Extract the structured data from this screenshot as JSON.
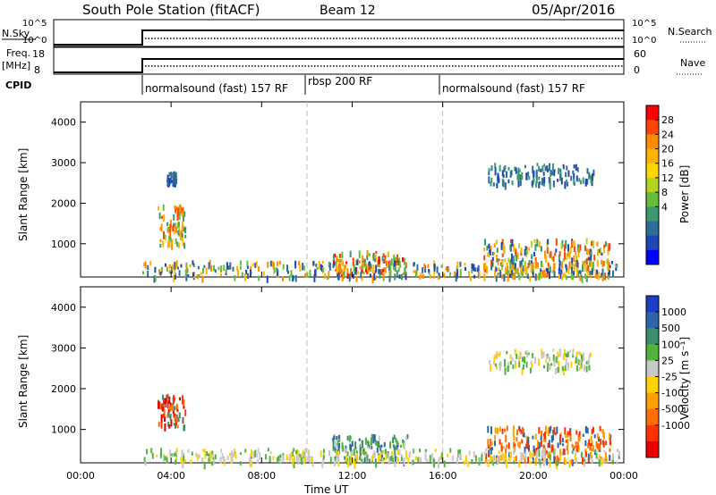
{
  "header": {
    "station": "South Pole Station (fitACF)",
    "beam": "Beam 12",
    "date": "05/Apr/2016"
  },
  "strip_panels": {
    "nsky": {
      "label": "N.Sky",
      "left_ticks": [
        "10^5",
        "10^0"
      ],
      "right_ticks": [
        "10^5",
        "10^0"
      ],
      "right_label": "N.Search"
    },
    "freq": {
      "label_line1": "Freq.",
      "label_line2": "[MHz]",
      "left_ticks": [
        "18",
        "8"
      ],
      "right_ticks": [
        "60",
        "0"
      ],
      "right_label": "Nave"
    },
    "cpid": {
      "label": "CPID",
      "segments": [
        "normalsound (fast) 157 RF",
        "rbsp 200 RF",
        "normalsound (fast) 157 RF"
      ]
    }
  },
  "colorbars": {
    "power": {
      "title": "Power [dB]",
      "ticks": [
        "28",
        "24",
        "20",
        "16",
        "12",
        "8",
        "4"
      ],
      "colors": [
        "#ff0000",
        "#ff4500",
        "#ff8c00",
        "#ffb300",
        "#ffd700",
        "#b4d21e",
        "#64be3c",
        "#3c9b6e",
        "#2d6e96",
        "#1e46b4",
        "#0000ff"
      ]
    },
    "velocity": {
      "title": "Velocity [m s⁻¹]",
      "ticks": [
        "1000",
        "500",
        "100",
        "25",
        "-25",
        "-100",
        "-500",
        "-1000"
      ],
      "colors": [
        "#1e3cc8",
        "#2d64aa",
        "#3c8c6e",
        "#50b43c",
        "#c8c8c8",
        "#ffd200",
        "#ffa000",
        "#ff6e00",
        "#ff3200",
        "#e60000"
      ]
    }
  },
  "chart_data": [
    {
      "type": "heatmap",
      "name": "power",
      "ylabel": "Slant Range [km]",
      "xlabel": "Time UT",
      "x_ticks": [
        "00:00",
        "04:00",
        "08:00",
        "12:00",
        "16:00",
        "20:00",
        "00:00"
      ],
      "y_ticks": [
        "4000",
        "3000",
        "2000",
        "1000"
      ],
      "xlim_hours": [
        0,
        24
      ],
      "ylim_km": [
        180,
        4500
      ],
      "blobs": [
        {
          "t0": 3.4,
          "t1": 4.6,
          "r0": 1000,
          "r1": 2000,
          "levels": [
            "#ff8c00",
            "#ffb300",
            "#64be3c",
            "#3c9b6e",
            "#ff4500"
          ]
        },
        {
          "t0": 3.8,
          "t1": 4.2,
          "r0": 2550,
          "r1": 2800,
          "levels": [
            "#1e46b4",
            "#2d6e96"
          ]
        },
        {
          "t0": 11.1,
          "t1": 14.4,
          "r0": 250,
          "r1": 850,
          "levels": [
            "#ff0000",
            "#ff4500",
            "#ff8c00",
            "#ffb300",
            "#64be3c",
            "#3c9b6e"
          ]
        },
        {
          "t0": 17.8,
          "t1": 23.4,
          "r0": 250,
          "r1": 1150,
          "levels": [
            "#ff4500",
            "#ff8c00",
            "#ffb300",
            "#b4d21e",
            "#3c9b6e",
            "#1e46b4"
          ]
        },
        {
          "t0": 17.9,
          "t1": 22.7,
          "r0": 2500,
          "r1": 3000,
          "levels": [
            "#1e46b4",
            "#2d6e96",
            "#3c9b6e"
          ]
        },
        {
          "t0": 2.7,
          "t1": 23.8,
          "r0": 200,
          "r1": 600,
          "levels": [
            "#2d6e96",
            "#ff8c00",
            "#1e46b4",
            "#64be3c",
            "#ffb300"
          ]
        }
      ]
    },
    {
      "type": "heatmap",
      "name": "velocity",
      "ylabel": "Slant Range [km]",
      "xlabel": "Time UT",
      "x_ticks": [
        "00:00",
        "04:00",
        "08:00",
        "12:00",
        "16:00",
        "20:00",
        "00:00"
      ],
      "y_ticks": [
        "4000",
        "3000",
        "2000",
        "1000"
      ],
      "xlim_hours": [
        0,
        24
      ],
      "ylim_km": [
        180,
        4500
      ],
      "blobs": [
        {
          "t0": 3.4,
          "t1": 4.6,
          "r0": 1100,
          "r1": 1900,
          "levels": [
            "#e60000",
            "#ff3200",
            "#ff6e00",
            "#3c8c6e"
          ]
        },
        {
          "t0": 11.1,
          "t1": 14.5,
          "r0": 250,
          "r1": 900,
          "levels": [
            "#3c8c6e",
            "#2d64aa",
            "#50b43c",
            "#c8c8c8"
          ]
        },
        {
          "t0": 17.8,
          "t1": 23.4,
          "r0": 250,
          "r1": 1100,
          "levels": [
            "#ff6e00",
            "#ff3200",
            "#ffa000",
            "#2d64aa"
          ]
        },
        {
          "t0": 18.0,
          "t1": 22.5,
          "r0": 2500,
          "r1": 3000,
          "levels": [
            "#c8c8c8",
            "#50b43c",
            "#ffd200"
          ]
        },
        {
          "t0": 2.7,
          "t1": 23.8,
          "r0": 200,
          "r1": 550,
          "levels": [
            "#c8c8c8",
            "#50b43c",
            "#ffd200"
          ]
        }
      ]
    }
  ]
}
